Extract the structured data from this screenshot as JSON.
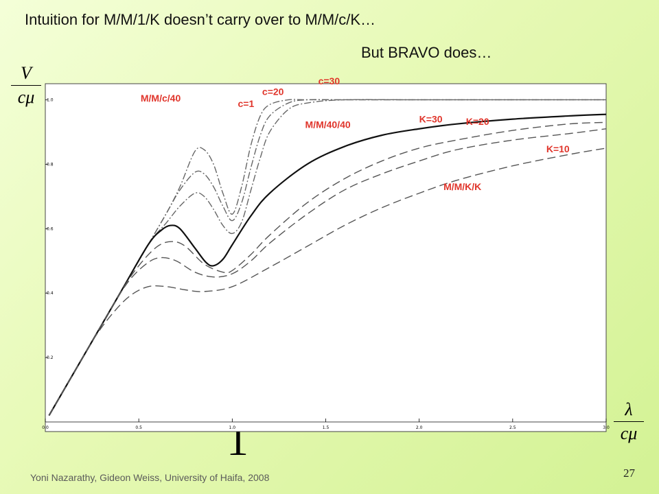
{
  "slide": {
    "title": "Intuition for M/M/1/K doesn’t carry over to M/M/c/K…",
    "subtitle": "But BRAVO does…",
    "footer": "Yoni Nazarathy, Gideon Weiss, University of Haifa, 2008",
    "page_number": "27",
    "y_axis_symbol": {
      "numerator": "V",
      "denominator": "cμ"
    },
    "x_axis_symbol": {
      "numerator": "λ",
      "denominator": "cμ"
    },
    "x_marker": "1"
  },
  "chart_data": {
    "type": "line",
    "title": "",
    "xlabel": "λ / cμ",
    "ylabel": "V / cμ",
    "xlim": [
      0,
      3
    ],
    "ylim": [
      0,
      1.05
    ],
    "x_ticks": [
      {
        "v": 0.0,
        "label": "0.0"
      },
      {
        "v": 0.5,
        "label": "0.5"
      },
      {
        "v": 1.0,
        "label": "1.0"
      },
      {
        "v": 1.5,
        "label": "1.5"
      },
      {
        "v": 2.0,
        "label": "2.0"
      },
      {
        "v": 2.5,
        "label": "2.5"
      },
      {
        "v": 3.0,
        "label": "3.0"
      }
    ],
    "y_ticks": [
      {
        "v": 0.2,
        "label": "0.2"
      },
      {
        "v": 0.4,
        "label": "0.4"
      },
      {
        "v": 0.6,
        "label": "0.6"
      },
      {
        "v": 0.8,
        "label": "0.8"
      },
      {
        "v": 1.0,
        "label": "1.0"
      }
    ],
    "grid": false,
    "series": [
      {
        "name": "c=1",
        "style": "dashdot",
        "x": [
          0.02,
          0.2,
          0.4,
          0.55,
          0.65,
          0.72,
          0.8,
          0.85,
          0.9,
          0.95,
          1.0,
          1.05,
          1.1,
          1.15,
          1.2,
          1.3,
          1.4,
          1.6,
          2.0,
          2.5,
          3.0
        ],
        "y": [
          0.02,
          0.2,
          0.4,
          0.55,
          0.62,
          0.67,
          0.71,
          0.7,
          0.66,
          0.61,
          0.585,
          0.62,
          0.72,
          0.82,
          0.9,
          0.97,
          0.99,
          1.0,
          1.0,
          1.0,
          1.0
        ]
      },
      {
        "name": "c=20",
        "style": "dashdot",
        "x": [
          0.02,
          0.2,
          0.4,
          0.55,
          0.65,
          0.72,
          0.8,
          0.85,
          0.9,
          0.95,
          1.0,
          1.05,
          1.1,
          1.15,
          1.2,
          1.3,
          1.4,
          1.6,
          2.0,
          2.5,
          3.0
        ],
        "y": [
          0.02,
          0.2,
          0.4,
          0.55,
          0.65,
          0.72,
          0.775,
          0.77,
          0.73,
          0.67,
          0.625,
          0.68,
          0.79,
          0.89,
          0.95,
          0.99,
          1.0,
          1.0,
          1.0,
          1.0,
          1.0
        ]
      },
      {
        "name": "c=30",
        "style": "dashdot",
        "x": [
          0.02,
          0.2,
          0.4,
          0.55,
          0.65,
          0.72,
          0.8,
          0.85,
          0.9,
          0.95,
          1.0,
          1.05,
          1.1,
          1.15,
          1.2,
          1.3,
          1.4,
          1.6,
          2.0,
          2.5,
          3.0
        ],
        "y": [
          0.02,
          0.2,
          0.4,
          0.55,
          0.65,
          0.73,
          0.84,
          0.845,
          0.8,
          0.71,
          0.645,
          0.73,
          0.86,
          0.95,
          0.985,
          1.0,
          1.0,
          1.0,
          1.0,
          1.0,
          1.0
        ]
      },
      {
        "name": "M/M/40/40",
        "style": "solid",
        "x": [
          0.02,
          0.2,
          0.4,
          0.55,
          0.62,
          0.67,
          0.72,
          0.8,
          0.86,
          0.9,
          0.95,
          1.0,
          1.1,
          1.2,
          1.4,
          1.6,
          1.8,
          2.0,
          2.2,
          2.5,
          2.8,
          3.0
        ],
        "y": [
          0.02,
          0.2,
          0.4,
          0.55,
          0.595,
          0.61,
          0.6,
          0.54,
          0.495,
          0.485,
          0.505,
          0.55,
          0.64,
          0.71,
          0.8,
          0.855,
          0.89,
          0.91,
          0.925,
          0.94,
          0.95,
          0.955
        ]
      },
      {
        "name": "K=30",
        "style": "dashed",
        "x": [
          0.02,
          0.2,
          0.4,
          0.5,
          0.6,
          0.68,
          0.75,
          0.85,
          0.95,
          1.0,
          1.1,
          1.2,
          1.4,
          1.6,
          1.8,
          2.0,
          2.2,
          2.5,
          2.8,
          3.0
        ],
        "y": [
          0.02,
          0.2,
          0.4,
          0.485,
          0.545,
          0.56,
          0.545,
          0.49,
          0.465,
          0.47,
          0.52,
          0.58,
          0.68,
          0.755,
          0.81,
          0.85,
          0.875,
          0.905,
          0.925,
          0.93
        ]
      },
      {
        "name": "K=20",
        "style": "dashed",
        "x": [
          0.02,
          0.2,
          0.35,
          0.45,
          0.55,
          0.62,
          0.7,
          0.8,
          0.9,
          1.0,
          1.1,
          1.2,
          1.4,
          1.6,
          1.8,
          2.0,
          2.2,
          2.5,
          2.8,
          3.0
        ],
        "y": [
          0.02,
          0.2,
          0.35,
          0.44,
          0.495,
          0.51,
          0.5,
          0.465,
          0.45,
          0.46,
          0.5,
          0.555,
          0.645,
          0.72,
          0.77,
          0.81,
          0.845,
          0.875,
          0.895,
          0.91
        ]
      },
      {
        "name": "K=10",
        "style": "dashed",
        "x": [
          0.02,
          0.15,
          0.25,
          0.35,
          0.45,
          0.55,
          0.65,
          0.75,
          0.85,
          1.0,
          1.2,
          1.4,
          1.6,
          1.8,
          2.0,
          2.2,
          2.5,
          2.8,
          3.0
        ],
        "y": [
          0.02,
          0.15,
          0.25,
          0.33,
          0.39,
          0.42,
          0.42,
          0.41,
          0.405,
          0.42,
          0.48,
          0.545,
          0.61,
          0.665,
          0.71,
          0.75,
          0.795,
          0.83,
          0.85
        ]
      }
    ],
    "annotations": [
      {
        "text": "M/M/c/40",
        "x": 0.51,
        "y": 0.995
      },
      {
        "text": "c=1",
        "x": 1.03,
        "y": 0.978
      },
      {
        "text": "c=20",
        "x": 1.16,
        "y": 1.015
      },
      {
        "text": "c=30",
        "x": 1.46,
        "y": 1.048
      },
      {
        "text": "M/M/40/40",
        "x": 1.39,
        "y": 0.913
      },
      {
        "text": "K=30",
        "x": 2.0,
        "y": 0.93
      },
      {
        "text": "K=20",
        "x": 2.25,
        "y": 0.922
      },
      {
        "text": "K=10",
        "x": 2.68,
        "y": 0.837
      },
      {
        "text": "M/M/K/K",
        "x": 2.13,
        "y": 0.72
      }
    ]
  }
}
